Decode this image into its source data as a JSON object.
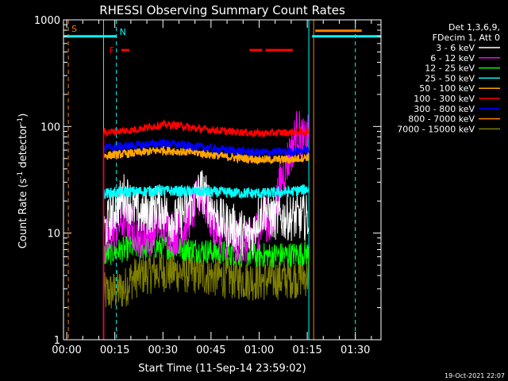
{
  "chart_data": {
    "type": "line",
    "title": "RHESSI Observing Summary Count Rates",
    "xlabel": "Start Time (11-Sep-14 23:59:02)",
    "ylabel": "Count Rate (s",
    "ylabel_sup": "-1",
    "ylabel_tail": " detector",
    "ylabel_sup2": "-1",
    "ylabel_close": ")",
    "y_scale": "log",
    "ylim": [
      1,
      1000
    ],
    "xlim_minutes": [
      -1,
      98
    ],
    "x_ticks": [
      {
        "t": 0,
        "label": "00:00"
      },
      {
        "t": 15,
        "label": "00:15"
      },
      {
        "t": 30,
        "label": "00:30"
      },
      {
        "t": 45,
        "label": "00:45"
      },
      {
        "t": 60,
        "label": "01:00"
      },
      {
        "t": 75,
        "label": "01:15"
      },
      {
        "t": 90,
        "label": "01:30"
      }
    ],
    "y_ticks": [
      {
        "v": 1,
        "label": "1"
      },
      {
        "v": 10,
        "label": "10"
      },
      {
        "v": 100,
        "label": "100"
      },
      {
        "v": 1000,
        "label": "1000"
      }
    ],
    "legend_header": [
      "Det 1,3,6,9,",
      "FDecim 1, Att 0"
    ],
    "legend_placement": "right",
    "data_window_minutes": [
      11.5,
      75.5
    ],
    "series": [
      {
        "name": "3 - 6 keV",
        "color": "#ffffff",
        "x": [
          11.5,
          13,
          15,
          17,
          18,
          20,
          22,
          24,
          26,
          28,
          30,
          32,
          34,
          35,
          36,
          38,
          40,
          42,
          44,
          46,
          48,
          50,
          52,
          54,
          56,
          58,
          60,
          62,
          64
        ],
        "y": [
          10,
          13,
          17,
          20,
          23,
          19,
          16,
          15,
          16,
          18,
          17,
          14,
          13,
          14,
          15,
          18,
          21,
          26,
          20,
          16,
          13,
          12,
          11.5,
          10.5,
          9.5,
          10,
          15,
          17,
          14
        ]
      },
      {
        "name": "6 - 12 keV",
        "color": "#ff00ff",
        "x": [
          11.5,
          13,
          15,
          17,
          18,
          20,
          22,
          24,
          26,
          28,
          30,
          32,
          34,
          36,
          38,
          40,
          42,
          44,
          46,
          48,
          50,
          52,
          54,
          56,
          58,
          60,
          62,
          64,
          66,
          68,
          70,
          72,
          74,
          75.5
        ],
        "y": [
          7,
          9,
          11,
          13,
          14,
          12,
          10,
          9.5,
          10,
          12,
          12,
          11,
          10,
          11,
          14,
          18,
          24,
          16,
          12,
          10,
          9.5,
          9,
          8.5,
          8,
          8.5,
          12,
          14,
          11,
          25,
          40,
          60,
          95,
          70,
          80
        ]
      },
      {
        "name": "12 - 25 keV",
        "color": "#00ff00",
        "x": [
          11.5,
          20,
          30,
          40,
          50,
          60,
          70,
          75.5
        ],
        "y": [
          6.3,
          7.3,
          7.5,
          7.0,
          6.5,
          6.2,
          6.3,
          6.5
        ]
      },
      {
        "name": "25 - 50 keV",
        "color": "#00ffff",
        "x": [
          11.5,
          20,
          30,
          40,
          50,
          60,
          70,
          75.5
        ],
        "y": [
          23.5,
          24.5,
          25,
          24.5,
          24,
          23.5,
          24.5,
          26
        ]
      },
      {
        "name": "50 - 100 keV",
        "color": "#ffa500",
        "x": [
          11.5,
          20,
          30,
          40,
          50,
          60,
          70,
          75.5
        ],
        "y": [
          53,
          56,
          60,
          57,
          52,
          49,
          49,
          52
        ]
      },
      {
        "name": "100 - 300 keV",
        "color": "#ff0000",
        "x": [
          11.5,
          20,
          25,
          30,
          35,
          40,
          50,
          60,
          70,
          75.5
        ],
        "y": [
          88,
          92,
          98,
          104,
          102,
          96,
          90,
          86,
          88,
          90
        ]
      },
      {
        "name": "300 - 800 keV",
        "color": "#0000ff",
        "x": [
          11.5,
          20,
          30,
          40,
          50,
          60,
          70,
          75.5
        ],
        "y": [
          63,
          66,
          70,
          65,
          60,
          57,
          58,
          60
        ]
      },
      {
        "name": "800 - 7000 keV",
        "color": "#ff8000",
        "x": [],
        "y": []
      },
      {
        "name": "7000 - 15000 keV",
        "color": "#808000",
        "x": [
          11.5,
          18,
          20,
          25,
          30,
          40,
          50,
          60,
          70,
          75.5
        ],
        "y": [
          2.7,
          3.0,
          3.7,
          4.2,
          4.4,
          4.2,
          3.8,
          3.6,
          3.8,
          4.0
        ]
      }
    ],
    "annotations": {
      "S_label": "S",
      "N_label": "N",
      "F_label": "F",
      "saa_bar_minutes": [
        -1,
        15.5
      ],
      "saa_bar_minutes_2": [
        76.5,
        98
      ],
      "saa_bar_level": 700,
      "saa_orange_bar_minutes": [
        77.5,
        92
      ],
      "saa_orange_bar_level": 790,
      "flare_bar_minutes": [
        17,
        19.5
      ],
      "flare_bar_level": 520,
      "red_segments_minutes": [
        [
          57,
          61
        ],
        [
          62,
          70.5
        ]
      ],
      "red_segments_level": 520,
      "cyan_solid_verticals_minutes": [
        11.5,
        75.5
      ],
      "cyan_dashed_verticals_minutes": [
        15.5,
        90
      ],
      "orange_solid_verticals_minutes": [
        77
      ],
      "orange_dashed_verticals_minutes": [
        0.5
      ]
    }
  },
  "footer": {
    "timestamp": "19-Oct-2021 22:07"
  }
}
